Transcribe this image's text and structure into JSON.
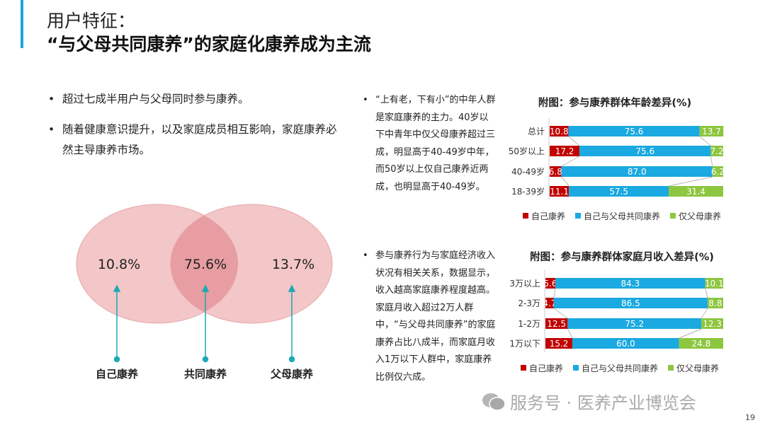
{
  "header": {
    "title_line1": "用户特征：",
    "title_line2": "“与父母共同康养”的家庭化康养成为主流"
  },
  "left_bullets": [
    "超过七成半用户与父母同时参与康养。",
    "随着健康意识提升，以及家庭成员相互影响，家庭康养必然主导康养市场。"
  ],
  "venn": {
    "left_value": "10.8%",
    "center_value": "75.6%",
    "right_value": "13.7%",
    "left_label": "自己康养",
    "center_label": "共同康养",
    "right_label": "父母康养"
  },
  "right_texts": [
    "“上有老，下有小”的中年人群是家庭康养的主力。40岁以下中青年中仅父母康养超过三成，明显高于40-49岁中年，而50岁以上仅自己康养近两成，也明显高于40-49岁。",
    "参与康养行为与家庭经济收入状况有相关关系，数据显示，收入越高家庭康养程度越高。家庭月收入超过2万人群中，“与父母共同康养”的家庭康养占比八成半，而家庭月收入1万以下人群中，家庭康养比例仅六成。"
  ],
  "colors": {
    "self": "#c00000",
    "joint": "#1aa9e0",
    "parents": "#8dc63f",
    "accent": "#1fa3d8"
  },
  "chart_data": [
    {
      "type": "bar",
      "stacked": true,
      "orientation": "horizontal",
      "title": "附图：参与康养群体年龄差异(%)",
      "categories": [
        "总计",
        "50岁以上",
        "40-49岁",
        "18-39岁"
      ],
      "series": [
        {
          "name": "自己康养",
          "values": [
            10.8,
            17.2,
            6.8,
            11.1
          ]
        },
        {
          "name": "自己与父母共同康养",
          "values": [
            75.6,
            75.6,
            87.0,
            57.5
          ]
        },
        {
          "name": "仅父母康养",
          "values": [
            13.7,
            7.2,
            6.2,
            31.4
          ]
        }
      ],
      "xlim": [
        0,
        100
      ],
      "legend": "bottom"
    },
    {
      "type": "bar",
      "stacked": true,
      "orientation": "horizontal",
      "title": "附图：参与康养群体家庭月收入差异(%)",
      "categories": [
        "3万以上",
        "2-3万",
        "1-2万",
        "1万以下"
      ],
      "series": [
        {
          "name": "自己康养",
          "values": [
            5.6,
            4.7,
            12.5,
            15.2
          ]
        },
        {
          "name": "自己与父母共同康养",
          "values": [
            84.3,
            86.5,
            75.2,
            60.0
          ]
        },
        {
          "name": "仅父母康养",
          "values": [
            10.1,
            8.8,
            12.3,
            24.8
          ]
        }
      ],
      "xlim": [
        0,
        100
      ],
      "legend": "bottom"
    }
  ],
  "footer": {
    "watermark": "服务号 · 医养产业博览会",
    "page_number": "19"
  }
}
